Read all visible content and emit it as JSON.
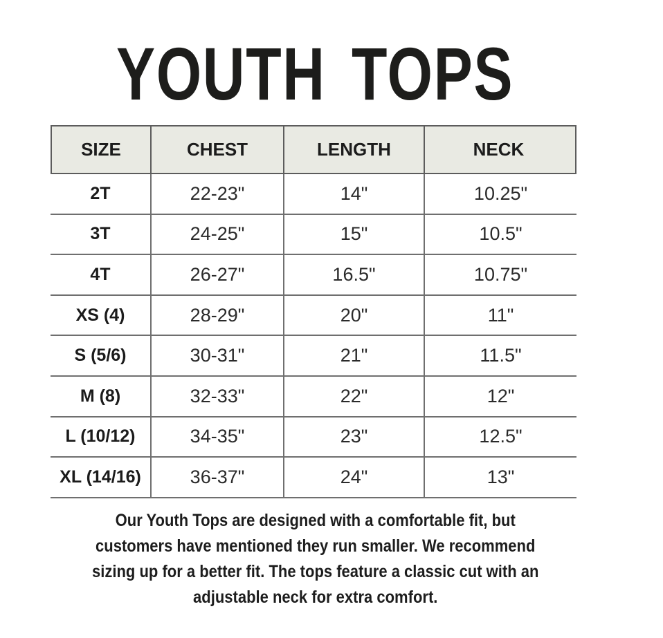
{
  "title": "YOUTH TOPS",
  "table": {
    "headers": [
      "SIZE",
      "CHEST",
      "LENGTH",
      "NECK"
    ],
    "rows": [
      {
        "size": "2T",
        "chest": "22-23\"",
        "length": "14\"",
        "neck": "10.25\""
      },
      {
        "size": "3T",
        "chest": "24-25\"",
        "length": "15\"",
        "neck": "10.5\""
      },
      {
        "size": "4T",
        "chest": "26-27\"",
        "length": "16.5\"",
        "neck": "10.75\""
      },
      {
        "size": "XS (4)",
        "chest": "28-29\"",
        "length": "20\"",
        "neck": "11\""
      },
      {
        "size": "S (5/6)",
        "chest": "30-31\"",
        "length": "21\"",
        "neck": "11.5\""
      },
      {
        "size": "M (8)",
        "chest": "32-33\"",
        "length": "22\"",
        "neck": "12\""
      },
      {
        "size": "L (10/12)",
        "chest": "34-35\"",
        "length": "23\"",
        "neck": "12.5\""
      },
      {
        "size": "XL (14/16)",
        "chest": "36-37\"",
        "length": "24\"",
        "neck": "13\""
      }
    ]
  },
  "note": {
    "lines": [
      "Our Youth Tops are designed with a comfortable fit, but",
      "customers have mentioned they run smaller. We recommend",
      "sizing up for a better fit. The tops feature a classic cut with an",
      "adjustable neck for extra comfort."
    ]
  },
  "colors": {
    "header_bg": "#e9eae3",
    "header_border": "#5c5c5c",
    "row_border": "#6f6f6f",
    "text": "#1d1d1d"
  }
}
